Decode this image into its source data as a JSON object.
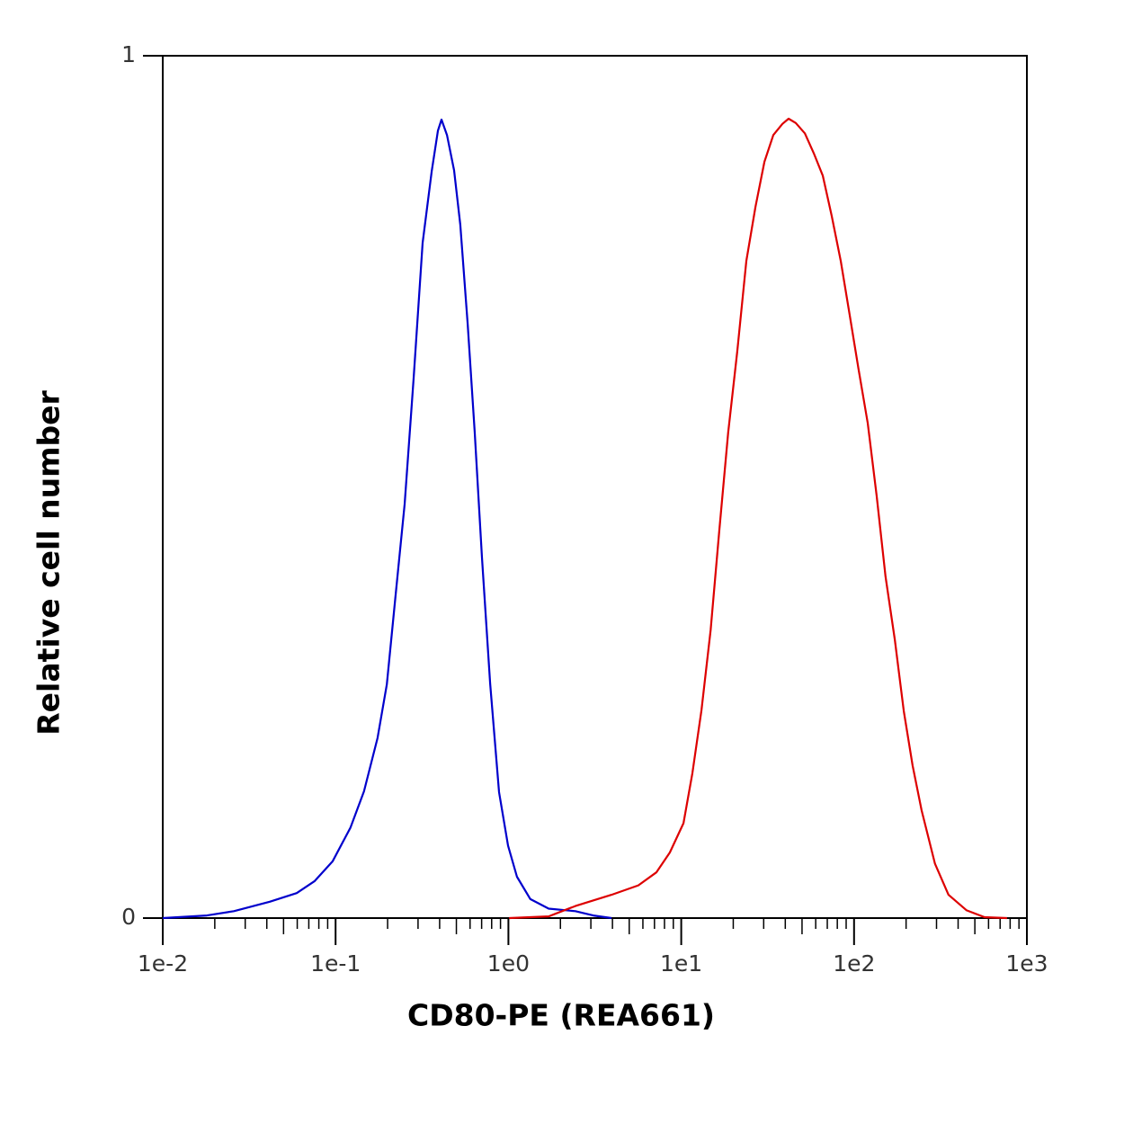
{
  "chart_data": {
    "type": "line",
    "x_label": "CD80-PE (REA661)",
    "y_label": "Relative cell number",
    "x_scale": "log",
    "xlim": [
      0.01,
      1000
    ],
    "xticks": [
      {
        "value": 0.01,
        "label": "1e-2"
      },
      {
        "value": 0.1,
        "label": "1e-1"
      },
      {
        "value": 1,
        "label": "1e0"
      },
      {
        "value": 10,
        "label": "1e1"
      },
      {
        "value": 100,
        "label": "1e2"
      },
      {
        "value": 1000,
        "label": "1e3"
      }
    ],
    "ylim": [
      0,
      1
    ],
    "yticks": [
      0,
      1
    ],
    "grid": false,
    "series": [
      {
        "color": "#0000cc",
        "x": [
          0.01,
          0.018,
          0.0258,
          0.0416,
          0.0596,
          0.0757,
          0.0962,
          0.122,
          0.146,
          0.175,
          0.198,
          0.223,
          0.251,
          0.283,
          0.319,
          0.36,
          0.391,
          0.41,
          0.441,
          0.485,
          0.527,
          0.581,
          0.638,
          0.703,
          0.784,
          0.883,
          0.995,
          1.12,
          1.34,
          1.71,
          2.44,
          3.1,
          3.95
        ],
        "values": [
          0,
          0.003,
          0.008,
          0.019,
          0.029,
          0.043,
          0.066,
          0.105,
          0.147,
          0.209,
          0.271,
          0.376,
          0.48,
          0.626,
          0.783,
          0.866,
          0.913,
          0.926,
          0.908,
          0.867,
          0.804,
          0.689,
          0.564,
          0.418,
          0.272,
          0.146,
          0.084,
          0.048,
          0.022,
          0.011,
          0.008,
          0.003,
          0
        ]
      },
      {
        "color": "#dd0000",
        "x": [
          1.01,
          1.71,
          2.44,
          3.95,
          5.65,
          7.18,
          8.59,
          10.3,
          11.6,
          13.1,
          14.8,
          16.6,
          18.7,
          21.1,
          23.8,
          26.9,
          30.3,
          34.1,
          38.5,
          41.8,
          46.0,
          51.9,
          58.5,
          65.9,
          74.3,
          83.8,
          94.4,
          106,
          120,
          135,
          152,
          172,
          194,
          218,
          246,
          294,
          352,
          448,
          569,
          767
        ],
        "values": [
          0,
          0.002,
          0.014,
          0.027,
          0.038,
          0.053,
          0.076,
          0.11,
          0.168,
          0.241,
          0.334,
          0.449,
          0.563,
          0.657,
          0.762,
          0.825,
          0.877,
          0.908,
          0.921,
          0.927,
          0.922,
          0.91,
          0.887,
          0.861,
          0.814,
          0.762,
          0.699,
          0.637,
          0.574,
          0.49,
          0.396,
          0.323,
          0.24,
          0.177,
          0.125,
          0.063,
          0.027,
          0.009,
          0.001,
          0
        ]
      }
    ]
  }
}
